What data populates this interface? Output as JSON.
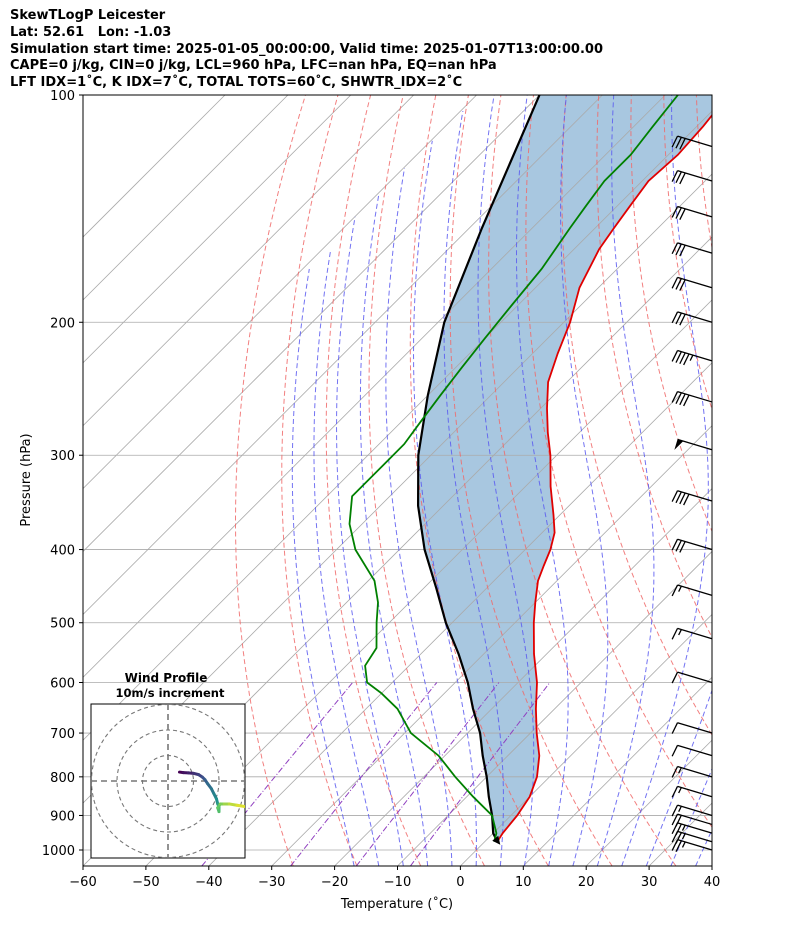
{
  "header": {
    "line1": "SkewTLogP Leicester",
    "line2": "Lat: 52.61   Lon: -1.03",
    "line3": "Simulation start time: 2025-01-05_00:00:00, Valid time: 2025-01-07T13:00:00.00",
    "line4": "CAPE=0 j/kg, CIN=0 j/kg, LCL=960 hPa, LFC=nan hPa, EQ=nan hPa",
    "line5": "LFT IDX=1˚C, K IDX=7˚C, TOTAL TOTS=60˚C, SHWTR_IDX=2˚C"
  },
  "chart_data": {
    "type": "line",
    "xlabel": "Temperature (˚C)",
    "ylabel": "Pressure (hPa)",
    "xlim": [
      -60,
      40
    ],
    "ylim": [
      1050,
      100
    ],
    "yscale": "log",
    "skew": 45,
    "x_ticks": [
      -60,
      -50,
      -40,
      -30,
      -20,
      -10,
      0,
      10,
      20,
      30,
      40
    ],
    "y_ticks": [
      100,
      200,
      300,
      400,
      500,
      600,
      700,
      800,
      900,
      1000
    ],
    "grid": true,
    "colors": {
      "temperature": "#e00000",
      "dewpoint": "#008000",
      "parcel": "#000000",
      "fill": "#a3c4de",
      "isotherm": "#aaaaaa",
      "dry_adiabat": "#f06a6a",
      "moist_adiabat": "#5a5af0",
      "mixing_ratio": "#9040c0"
    },
    "series": [
      {
        "pressure": [
          975,
          950,
          900,
          850,
          800,
          750,
          700,
          650,
          600,
          550,
          500,
          470,
          440,
          420,
          400,
          380,
          360,
          330,
          300,
          280,
          260,
          240,
          220,
          200,
          180,
          160,
          150,
          140,
          130,
          120,
          110,
          100
        ],
        "temperature": [
          2,
          1.5,
          1,
          0,
          -2,
          -5,
          -9,
          -13,
          -17,
          -22,
          -27,
          -30,
          -33,
          -34.5,
          -36,
          -38,
          -41,
          -46,
          -51,
          -55,
          -59,
          -63,
          -66,
          -69,
          -73,
          -76,
          -77,
          -78,
          -79,
          -78.5,
          -79,
          -80
        ]
      },
      {
        "pressure": [
          975,
          950,
          900,
          850,
          800,
          750,
          700,
          650,
          620,
          600,
          570,
          540,
          500,
          470,
          440,
          400,
          370,
          340,
          310,
          290,
          270,
          250,
          230,
          210,
          190,
          170,
          150,
          140,
          130,
          120,
          110,
          100
        ],
        "dewpoint": [
          1.5,
          0.5,
          -3,
          -9,
          -15,
          -21,
          -29,
          -35,
          -40,
          -44,
          -47,
          -48,
          -52,
          -55,
          -59,
          -67,
          -72,
          -76,
          -76,
          -76,
          -77,
          -78,
          -79,
          -80,
          -81,
          -82,
          -84,
          -85,
          -86,
          -86,
          -87,
          -88
        ]
      },
      {
        "pressure": [
          975,
          950,
          900,
          850,
          800,
          750,
          700,
          650,
          600,
          550,
          500,
          450,
          400,
          350,
          300,
          250,
          200,
          150,
          100
        ],
        "parcel_temperature": [
          2,
          0,
          -3,
          -6.5,
          -10,
          -14,
          -18,
          -23,
          -28,
          -34,
          -41,
          -48,
          -56,
          -64,
          -72,
          -80,
          -89,
          -98,
          -110
        ]
      }
    ],
    "wind_barbs": [
      {
        "pressure": 1000,
        "speed_kt": 25
      },
      {
        "pressure": 975,
        "speed_kt": 25
      },
      {
        "pressure": 950,
        "speed_kt": 25
      },
      {
        "pressure": 925,
        "speed_kt": 20
      },
      {
        "pressure": 900,
        "speed_kt": 15
      },
      {
        "pressure": 850,
        "speed_kt": 15
      },
      {
        "pressure": 800,
        "speed_kt": 15
      },
      {
        "pressure": 750,
        "speed_kt": 10
      },
      {
        "pressure": 700,
        "speed_kt": 10
      },
      {
        "pressure": 600,
        "speed_kt": 10
      },
      {
        "pressure": 525,
        "speed_kt": 15
      },
      {
        "pressure": 460,
        "speed_kt": 15
      },
      {
        "pressure": 400,
        "speed_kt": 30
      },
      {
        "pressure": 345,
        "speed_kt": 40
      },
      {
        "pressure": 295,
        "speed_kt": 50
      },
      {
        "pressure": 255,
        "speed_kt": 40
      },
      {
        "pressure": 225,
        "speed_kt": 45
      },
      {
        "pressure": 200,
        "speed_kt": 30
      },
      {
        "pressure": 180,
        "speed_kt": 30
      },
      {
        "pressure": 162,
        "speed_kt": 30
      },
      {
        "pressure": 145,
        "speed_kt": 30
      },
      {
        "pressure": 130,
        "speed_kt": 30
      },
      {
        "pressure": 117,
        "speed_kt": 30
      }
    ],
    "hodograph": {
      "title_line1": "Wind Profile",
      "title_line2": "10m/s increment",
      "rings_ms": [
        10,
        20,
        30
      ],
      "u": [
        4.5,
        6,
        8,
        10,
        12,
        13.5,
        14.5,
        15.5,
        17,
        18,
        19,
        19.5,
        20,
        20,
        20,
        19.5,
        20.5,
        22,
        24,
        27,
        30
      ],
      "v": [
        3.5,
        3.3,
        3.2,
        3,
        2.5,
        1.5,
        0.5,
        -1,
        -3,
        -5,
        -7,
        -9,
        -10,
        -11,
        -12,
        -10.5,
        -9,
        -9,
        -9,
        -9.5,
        -10
      ]
    }
  }
}
